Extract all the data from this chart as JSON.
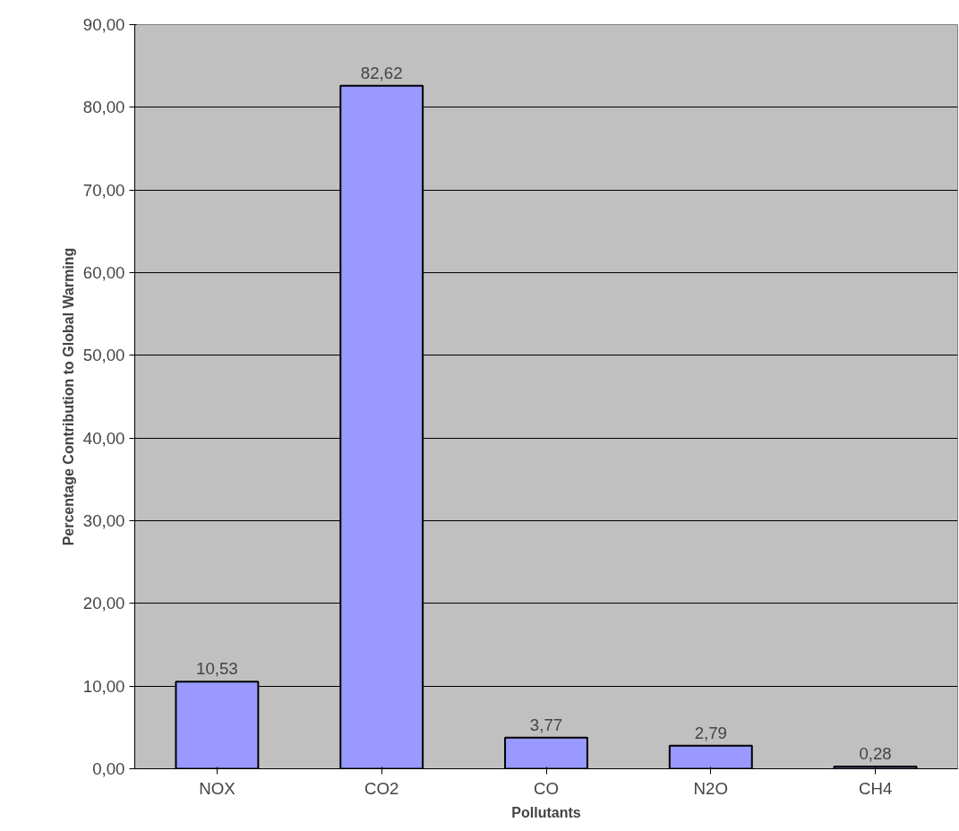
{
  "chart_data": {
    "type": "bar",
    "xlabel": "Pollutants",
    "ylabel": "Percentage Contribution to Global Warming",
    "categories": [
      "NOX",
      "CO2",
      "CO",
      "N2O",
      "CH4"
    ],
    "values": [
      10.53,
      82.62,
      3.77,
      2.79,
      0.28
    ],
    "value_labels": [
      "10,53",
      "82,62",
      "3,77",
      "2,79",
      "0,28"
    ],
    "color": "#9999ff",
    "ylim": [
      0,
      90
    ],
    "yticks": [
      {
        "value": 0,
        "label": "0,00"
      },
      {
        "value": 10,
        "label": "10,00"
      },
      {
        "value": 20,
        "label": "20,00"
      },
      {
        "value": 30,
        "label": "30,00"
      },
      {
        "value": 40,
        "label": "40,00"
      },
      {
        "value": 50,
        "label": "50,00"
      },
      {
        "value": 60,
        "label": "60,00"
      },
      {
        "value": 70,
        "label": "70,00"
      },
      {
        "value": 80,
        "label": "80,00"
      },
      {
        "value": 90,
        "label": "90,00"
      }
    ],
    "grid": "y"
  }
}
